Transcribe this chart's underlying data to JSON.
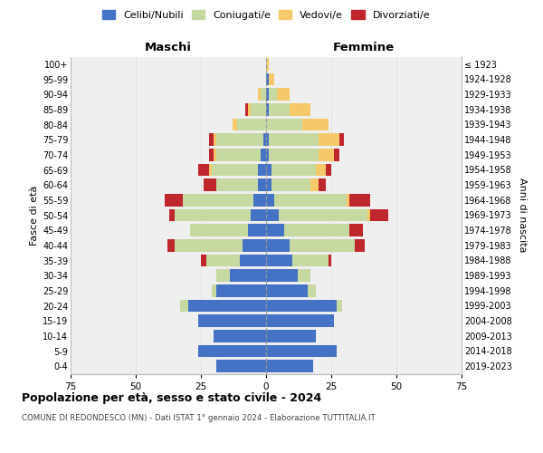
{
  "age_groups": [
    "0-4",
    "5-9",
    "10-14",
    "15-19",
    "20-24",
    "25-29",
    "30-34",
    "35-39",
    "40-44",
    "45-49",
    "50-54",
    "55-59",
    "60-64",
    "65-69",
    "70-74",
    "75-79",
    "80-84",
    "85-89",
    "90-94",
    "95-99",
    "100+"
  ],
  "birth_years": [
    "2019-2023",
    "2014-2018",
    "2009-2013",
    "2004-2008",
    "1999-2003",
    "1994-1998",
    "1989-1993",
    "1984-1988",
    "1979-1983",
    "1974-1978",
    "1969-1973",
    "1964-1968",
    "1959-1963",
    "1954-1958",
    "1949-1953",
    "1944-1948",
    "1939-1943",
    "1934-1938",
    "1929-1933",
    "1924-1928",
    "≤ 1923"
  ],
  "colors": {
    "celibi": "#4472c4",
    "coniugati": "#c5d9a0",
    "vedovi": "#f5c96a",
    "divorziati": "#c0272d"
  },
  "males": {
    "celibi": [
      19,
      26,
      20,
      26,
      30,
      19,
      14,
      10,
      9,
      7,
      6,
      5,
      3,
      3,
      2,
      1,
      0,
      0,
      0,
      0,
      0
    ],
    "coniugati": [
      0,
      0,
      0,
      0,
      3,
      2,
      5,
      13,
      26,
      22,
      29,
      27,
      16,
      18,
      17,
      18,
      11,
      6,
      2,
      0,
      0
    ],
    "vedovi": [
      0,
      0,
      0,
      0,
      0,
      0,
      0,
      0,
      0,
      0,
      0,
      0,
      0,
      1,
      1,
      1,
      2,
      1,
      1,
      0,
      0
    ],
    "divorziati": [
      0,
      0,
      0,
      0,
      0,
      0,
      0,
      2,
      3,
      0,
      2,
      7,
      5,
      4,
      2,
      2,
      0,
      1,
      0,
      0,
      0
    ]
  },
  "females": {
    "celibi": [
      18,
      27,
      19,
      26,
      27,
      16,
      12,
      10,
      9,
      7,
      5,
      3,
      2,
      2,
      1,
      1,
      0,
      1,
      1,
      1,
      0
    ],
    "coniugati": [
      0,
      0,
      0,
      0,
      2,
      3,
      5,
      14,
      25,
      25,
      34,
      28,
      15,
      17,
      19,
      19,
      14,
      8,
      3,
      0,
      0
    ],
    "vedovi": [
      0,
      0,
      0,
      0,
      0,
      0,
      0,
      0,
      0,
      0,
      1,
      1,
      3,
      4,
      6,
      8,
      10,
      8,
      5,
      2,
      1
    ],
    "divorziati": [
      0,
      0,
      0,
      0,
      0,
      0,
      0,
      1,
      4,
      5,
      7,
      8,
      3,
      2,
      2,
      2,
      0,
      0,
      0,
      0,
      0
    ]
  },
  "xlim": 75,
  "title": "Popolazione per età, sesso e stato civile - 2024",
  "subtitle": "COMUNE DI REDONDESCO (MN) - Dati ISTAT 1° gennaio 2024 - Elaborazione TUTTITALIA.IT",
  "xlabel_left": "Maschi",
  "xlabel_right": "Femmine",
  "ylabel_left": "Fasce di età",
  "ylabel_right": "Anni di nascita",
  "legend_labels": [
    "Celibi/Nubili",
    "Coniugati/e",
    "Vedovi/e",
    "Divorziati/e"
  ],
  "background_color": "#efefef"
}
